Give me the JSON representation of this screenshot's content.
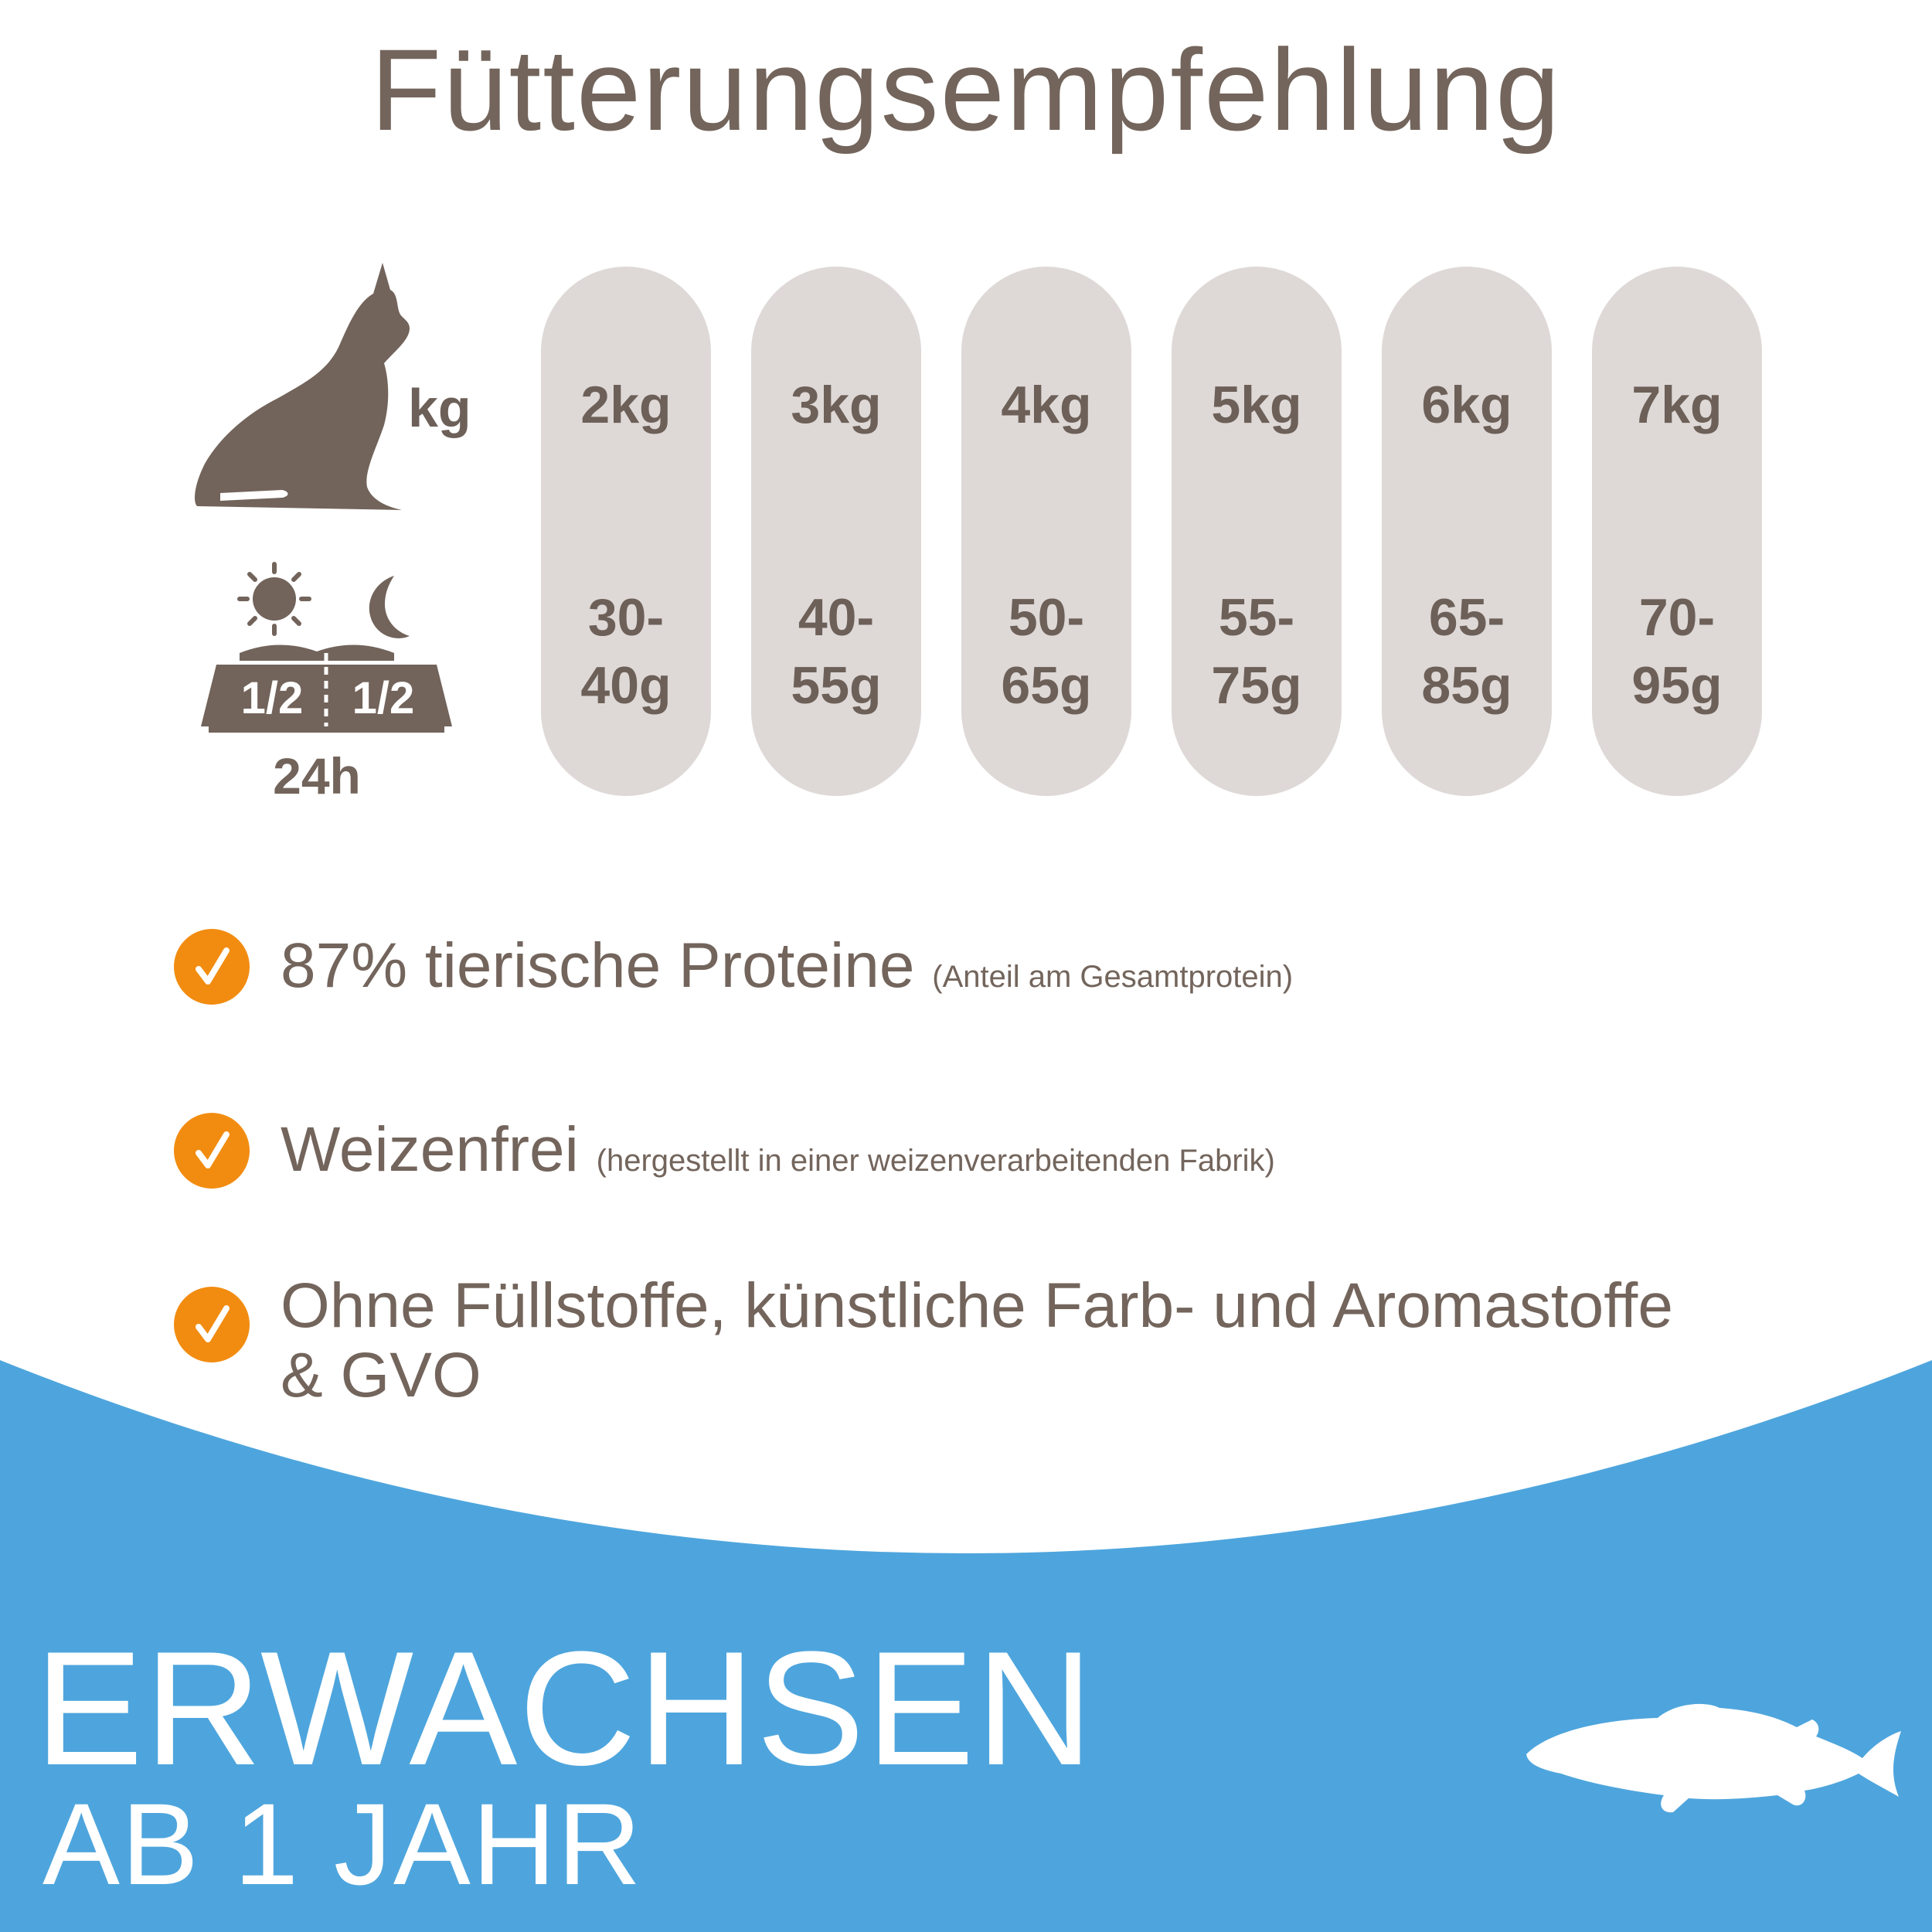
{
  "title": "Fütterungsempfehlung",
  "weight_label": "kg",
  "feeding": {
    "half_left": "1/2",
    "half_right": "1/2",
    "period": "24h"
  },
  "rows": [
    {
      "weight": "2kg",
      "amount_line1": "30-",
      "amount_line2": "40g"
    },
    {
      "weight": "3kg",
      "amount_line1": "40-",
      "amount_line2": "55g"
    },
    {
      "weight": "4kg",
      "amount_line1": "50-",
      "amount_line2": "65g"
    },
    {
      "weight": "5kg",
      "amount_line1": "55-",
      "amount_line2": "75g"
    },
    {
      "weight": "6kg",
      "amount_line1": "65-",
      "amount_line2": "85g"
    },
    {
      "weight": "7kg",
      "amount_line1": "70-",
      "amount_line2": "95g"
    }
  ],
  "features": [
    {
      "text": "87% tierische Proteine",
      "note": "(Anteil am Gesamtprotein)"
    },
    {
      "text": "Weizenfrei",
      "note": "(hergestellt in einer weizenverarbeitenden Fabrik)"
    },
    {
      "text": "Ohne Füllstoffe, künstliche Farb- und Aromastoffe",
      "text_line2": "& GVO"
    }
  ],
  "banner": {
    "title": "ERWACHSEN",
    "subtitle": "AB 1 JAHR"
  },
  "colors": {
    "text": "#73655c",
    "pill": "#ded9d7",
    "check": "#f28c10",
    "banner": "#4ea5dd"
  },
  "icons": {
    "cat": "cat-icon",
    "sun": "sun-icon",
    "moon": "moon-icon",
    "bowl": "food-bowl-icon",
    "check": "check-icon",
    "fish": "fish-icon"
  }
}
